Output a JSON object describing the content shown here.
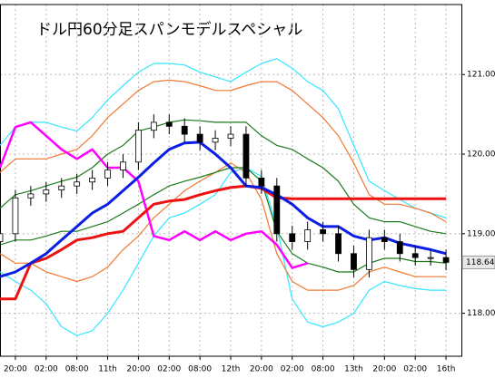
{
  "chart_data": {
    "type": "candlestick",
    "title": "ドル円60分足スパンモデルスペシャル",
    "xlim": [
      -3,
      87
    ],
    "ylim": [
      117.46,
      121.88
    ],
    "xticks": [
      {
        "value": 0,
        "label": "20:00"
      },
      {
        "value": 6,
        "label": "02:00"
      },
      {
        "value": 12,
        "label": "08:00"
      },
      {
        "value": 18,
        "label": "11th"
      },
      {
        "value": 24,
        "label": "20:00"
      },
      {
        "value": 30,
        "label": "02:00"
      },
      {
        "value": 36,
        "label": "08:00"
      },
      {
        "value": 42,
        "label": "12th"
      },
      {
        "value": 48,
        "label": "20:00"
      },
      {
        "value": 54,
        "label": "02:00"
      },
      {
        "value": 60,
        "label": "08:00"
      },
      {
        "value": 66,
        "label": "13th"
      },
      {
        "value": 72,
        "label": "20:00"
      },
      {
        "value": 78,
        "label": "02:00"
      },
      {
        "value": 84,
        "label": "16th"
      }
    ],
    "yticks": [
      {
        "value": 118,
        "label": "118.00"
      },
      {
        "value": 119,
        "label": "119.00"
      },
      {
        "value": 120,
        "label": "120.00"
      },
      {
        "value": 121,
        "label": "121.00"
      }
    ],
    "grid": true,
    "last_price": 118.64,
    "x": [
      -3,
      0,
      3,
      6,
      9,
      12,
      15,
      18,
      21,
      24,
      27,
      30,
      33,
      36,
      39,
      42,
      45,
      48,
      51,
      54,
      57,
      60,
      63,
      66,
      69,
      72,
      75,
      78,
      81,
      84
    ],
    "candles": {
      "open": [
        118.9,
        119.0,
        119.45,
        119.5,
        119.55,
        119.6,
        119.65,
        119.7,
        119.8,
        119.9,
        120.3,
        120.4,
        120.35,
        120.25,
        120.15,
        120.2,
        120.25,
        119.7,
        119.6,
        119.0,
        118.9,
        119.05,
        119.0,
        118.75,
        118.55,
        118.95,
        118.9,
        118.75,
        118.7,
        118.7
      ],
      "high": [
        119.1,
        119.55,
        119.6,
        119.65,
        119.7,
        119.75,
        119.8,
        119.9,
        120.0,
        120.4,
        120.5,
        120.5,
        120.45,
        120.35,
        120.3,
        120.35,
        120.35,
        119.8,
        119.7,
        119.1,
        119.15,
        119.15,
        119.1,
        118.85,
        119.05,
        119.05,
        119.0,
        118.85,
        118.8,
        118.8
      ],
      "low": [
        118.8,
        118.9,
        119.35,
        119.4,
        119.45,
        119.5,
        119.55,
        119.6,
        119.7,
        119.8,
        120.2,
        120.25,
        120.15,
        120.05,
        120.05,
        120.1,
        119.6,
        119.5,
        118.9,
        118.8,
        118.8,
        118.9,
        118.65,
        118.45,
        118.45,
        118.8,
        118.65,
        118.6,
        118.6,
        118.54
      ],
      "close": [
        119.0,
        119.45,
        119.5,
        119.55,
        119.6,
        119.65,
        119.7,
        119.8,
        119.9,
        120.3,
        120.4,
        120.35,
        120.25,
        120.15,
        120.2,
        120.25,
        119.7,
        119.6,
        119.0,
        118.9,
        119.05,
        119.0,
        118.75,
        118.55,
        118.95,
        118.9,
        118.75,
        118.7,
        118.7,
        118.64
      ]
    },
    "series": [
      {
        "color": "#33e6ff",
        "linewidth": 1.2,
        "values": [
          120.11,
          120.34,
          120.4,
          120.4,
          120.34,
          120.29,
          120.46,
          120.68,
          120.86,
          121.03,
          121.14,
          121.14,
          121.12,
          121.03,
          120.97,
          120.91,
          121.03,
          121.14,
          121.2,
          121.08,
          120.91,
          120.8,
          120.57,
          120.11,
          119.66,
          119.54,
          119.43,
          119.32,
          119.26,
          119.2
        ]
      },
      {
        "color": "#33e6ff",
        "linewidth": 1.2,
        "values": [
          118.52,
          118.4,
          118.29,
          118.12,
          117.83,
          117.72,
          117.78,
          118.0,
          118.29,
          118.63,
          118.97,
          119.2,
          119.26,
          119.37,
          119.49,
          119.77,
          119.83,
          119.72,
          119.09,
          118.18,
          117.89,
          117.83,
          117.89,
          118.0,
          118.29,
          118.4,
          118.35,
          118.31,
          118.29,
          118.29
        ]
      },
      {
        "color": "#f07830",
        "linewidth": 1.2,
        "values": [
          119.77,
          119.94,
          119.94,
          119.94,
          120.0,
          120.06,
          120.23,
          120.46,
          120.63,
          120.8,
          120.91,
          120.93,
          120.91,
          120.86,
          120.8,
          120.8,
          120.86,
          120.91,
          120.91,
          120.8,
          120.63,
          120.46,
          120.23,
          119.89,
          119.49,
          119.37,
          119.37,
          119.32,
          119.26,
          119.15
        ]
      },
      {
        "color": "#f07830",
        "linewidth": 1.2,
        "values": [
          118.75,
          118.63,
          118.63,
          118.52,
          118.46,
          118.4,
          118.46,
          118.58,
          118.8,
          118.97,
          119.2,
          119.37,
          119.54,
          119.66,
          119.77,
          119.89,
          119.77,
          119.43,
          118.75,
          118.4,
          118.29,
          118.29,
          118.29,
          118.35,
          118.52,
          118.58,
          118.52,
          118.46,
          118.46,
          118.46
        ]
      },
      {
        "color": "#1a7a1a",
        "linewidth": 1.2,
        "values": [
          119.32,
          119.49,
          119.54,
          119.6,
          119.66,
          119.71,
          119.83,
          120.0,
          120.11,
          120.29,
          120.34,
          120.4,
          120.43,
          120.42,
          120.4,
          120.4,
          120.4,
          120.23,
          120.11,
          120.06,
          119.94,
          119.83,
          119.66,
          119.37,
          119.2,
          119.15,
          119.15,
          119.09,
          119.03,
          119.0
        ]
      },
      {
        "color": "#1a7a1a",
        "linewidth": 1.2,
        "values": [
          118.86,
          118.92,
          118.92,
          118.97,
          119.03,
          119.03,
          119.09,
          119.15,
          119.26,
          119.37,
          119.49,
          119.6,
          119.66,
          119.71,
          119.77,
          119.83,
          119.83,
          119.66,
          119.03,
          118.75,
          118.63,
          118.58,
          118.52,
          118.52,
          118.63,
          118.69,
          118.69,
          118.65,
          118.65,
          118.63
        ]
      },
      {
        "color": "#ff00ff",
        "linewidth": 2.5,
        "values": [
          119.83,
          120.34,
          120.4,
          120.23,
          120.06,
          119.94,
          120.06,
          119.83,
          119.83,
          119.66,
          118.97,
          118.92,
          119.03,
          118.92,
          119.03,
          118.92,
          119.0,
          119.03,
          118.86,
          118.57,
          118.63,
          null,
          null,
          null,
          null,
          null,
          null,
          null,
          null,
          null
        ]
      },
      {
        "color": "#ee1111",
        "linewidth": 3,
        "values": [
          118.18,
          118.18,
          118.63,
          118.69,
          118.8,
          118.92,
          118.95,
          119.0,
          119.03,
          119.2,
          119.37,
          119.41,
          119.43,
          119.49,
          119.54,
          119.58,
          119.6,
          119.57,
          119.45,
          119.44,
          119.44,
          119.44,
          119.44,
          119.44,
          119.44,
          119.44,
          119.44,
          119.44,
          119.44,
          119.44
        ]
      },
      {
        "color": "#0a1ee6",
        "linewidth": 3,
        "values": [
          118.46,
          118.52,
          118.63,
          118.75,
          118.92,
          119.09,
          119.26,
          119.37,
          119.54,
          119.71,
          119.89,
          120.06,
          120.14,
          120.15,
          120.0,
          119.83,
          119.6,
          119.58,
          119.49,
          119.37,
          119.2,
          119.09,
          119.09,
          118.97,
          118.92,
          118.95,
          118.88,
          118.84,
          118.8,
          118.75
        ]
      }
    ]
  }
}
